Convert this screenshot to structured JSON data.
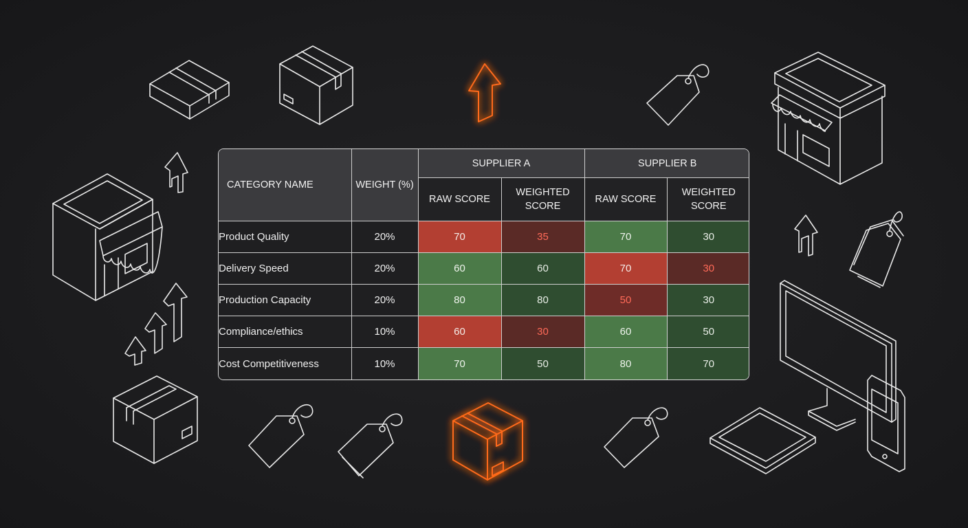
{
  "table": {
    "header": {
      "category": "CATEGORY NAME",
      "weight": "WEIGHT (%)",
      "supplier_a": "SUPPLIER A",
      "supplier_b": "SUPPLIER B",
      "raw_score": "RAW SCORE",
      "weighted_score": "WEIGHTED SCORE"
    },
    "rows": [
      {
        "category": "Product Quality",
        "weight": "20%",
        "a_raw": "70",
        "a_weighted": "35",
        "b_raw": "70",
        "b_weighted": "30"
      },
      {
        "category": "Delivery Speed",
        "weight": "20%",
        "a_raw": "60",
        "a_weighted": "60",
        "b_raw": "70",
        "b_weighted": "30"
      },
      {
        "category": "Production Capacity",
        "weight": "20%",
        "a_raw": "80",
        "a_weighted": "80",
        "b_raw": "50",
        "b_weighted": "30"
      },
      {
        "category": "Compliance/ethics",
        "weight": "10%",
        "a_raw": "60",
        "a_weighted": "30",
        "b_raw": "60",
        "b_weighted": "50"
      },
      {
        "category": "Cost Competitiveness",
        "weight": "10%",
        "a_raw": "70",
        "a_weighted": "50",
        "b_raw": "80",
        "b_weighted": "70"
      }
    ]
  },
  "colors": {
    "background": "#1c1c1e",
    "accent_orange": "#ff6a1a",
    "bad": "#b33f32",
    "good": "#4b7a48"
  },
  "icons": [
    "flat-box-icon",
    "cube-box-icon",
    "up-arrow-glow-icon",
    "price-tag-icon",
    "storefront-icon",
    "up-arrow-icon",
    "growth-arrows-icon",
    "tag-pair-icon",
    "monitor-icon",
    "phone-icon",
    "tablet-icon"
  ]
}
